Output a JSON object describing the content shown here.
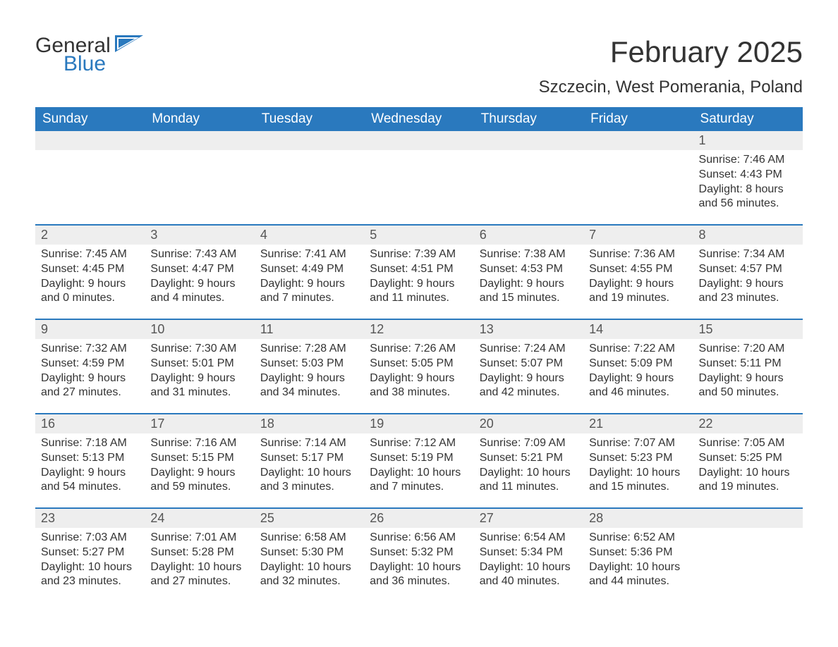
{
  "brand": {
    "general": "General",
    "blue": "Blue"
  },
  "title": "February 2025",
  "location": "Szczecin, West Pomerania, Poland",
  "colors": {
    "header_bg": "#2a79be",
    "header_text": "#ffffff",
    "daynum_bg": "#eeeeee",
    "text": "#333333",
    "week_border": "#2a79be",
    "background": "#ffffff"
  },
  "typography": {
    "title_fontsize": 42,
    "location_fontsize": 24,
    "header_fontsize": 19,
    "daynum_fontsize": 18,
    "detail_fontsize": 16
  },
  "day_headers": [
    "Sunday",
    "Monday",
    "Tuesday",
    "Wednesday",
    "Thursday",
    "Friday",
    "Saturday"
  ],
  "weeks": [
    [
      null,
      null,
      null,
      null,
      null,
      null,
      {
        "n": "1",
        "sunrise": "Sunrise: 7:46 AM",
        "sunset": "Sunset: 4:43 PM",
        "day1": "Daylight: 8 hours",
        "day2": "and 56 minutes."
      }
    ],
    [
      {
        "n": "2",
        "sunrise": "Sunrise: 7:45 AM",
        "sunset": "Sunset: 4:45 PM",
        "day1": "Daylight: 9 hours",
        "day2": "and 0 minutes."
      },
      {
        "n": "3",
        "sunrise": "Sunrise: 7:43 AM",
        "sunset": "Sunset: 4:47 PM",
        "day1": "Daylight: 9 hours",
        "day2": "and 4 minutes."
      },
      {
        "n": "4",
        "sunrise": "Sunrise: 7:41 AM",
        "sunset": "Sunset: 4:49 PM",
        "day1": "Daylight: 9 hours",
        "day2": "and 7 minutes."
      },
      {
        "n": "5",
        "sunrise": "Sunrise: 7:39 AM",
        "sunset": "Sunset: 4:51 PM",
        "day1": "Daylight: 9 hours",
        "day2": "and 11 minutes."
      },
      {
        "n": "6",
        "sunrise": "Sunrise: 7:38 AM",
        "sunset": "Sunset: 4:53 PM",
        "day1": "Daylight: 9 hours",
        "day2": "and 15 minutes."
      },
      {
        "n": "7",
        "sunrise": "Sunrise: 7:36 AM",
        "sunset": "Sunset: 4:55 PM",
        "day1": "Daylight: 9 hours",
        "day2": "and 19 minutes."
      },
      {
        "n": "8",
        "sunrise": "Sunrise: 7:34 AM",
        "sunset": "Sunset: 4:57 PM",
        "day1": "Daylight: 9 hours",
        "day2": "and 23 minutes."
      }
    ],
    [
      {
        "n": "9",
        "sunrise": "Sunrise: 7:32 AM",
        "sunset": "Sunset: 4:59 PM",
        "day1": "Daylight: 9 hours",
        "day2": "and 27 minutes."
      },
      {
        "n": "10",
        "sunrise": "Sunrise: 7:30 AM",
        "sunset": "Sunset: 5:01 PM",
        "day1": "Daylight: 9 hours",
        "day2": "and 31 minutes."
      },
      {
        "n": "11",
        "sunrise": "Sunrise: 7:28 AM",
        "sunset": "Sunset: 5:03 PM",
        "day1": "Daylight: 9 hours",
        "day2": "and 34 minutes."
      },
      {
        "n": "12",
        "sunrise": "Sunrise: 7:26 AM",
        "sunset": "Sunset: 5:05 PM",
        "day1": "Daylight: 9 hours",
        "day2": "and 38 minutes."
      },
      {
        "n": "13",
        "sunrise": "Sunrise: 7:24 AM",
        "sunset": "Sunset: 5:07 PM",
        "day1": "Daylight: 9 hours",
        "day2": "and 42 minutes."
      },
      {
        "n": "14",
        "sunrise": "Sunrise: 7:22 AM",
        "sunset": "Sunset: 5:09 PM",
        "day1": "Daylight: 9 hours",
        "day2": "and 46 minutes."
      },
      {
        "n": "15",
        "sunrise": "Sunrise: 7:20 AM",
        "sunset": "Sunset: 5:11 PM",
        "day1": "Daylight: 9 hours",
        "day2": "and 50 minutes."
      }
    ],
    [
      {
        "n": "16",
        "sunrise": "Sunrise: 7:18 AM",
        "sunset": "Sunset: 5:13 PM",
        "day1": "Daylight: 9 hours",
        "day2": "and 54 minutes."
      },
      {
        "n": "17",
        "sunrise": "Sunrise: 7:16 AM",
        "sunset": "Sunset: 5:15 PM",
        "day1": "Daylight: 9 hours",
        "day2": "and 59 minutes."
      },
      {
        "n": "18",
        "sunrise": "Sunrise: 7:14 AM",
        "sunset": "Sunset: 5:17 PM",
        "day1": "Daylight: 10 hours",
        "day2": "and 3 minutes."
      },
      {
        "n": "19",
        "sunrise": "Sunrise: 7:12 AM",
        "sunset": "Sunset: 5:19 PM",
        "day1": "Daylight: 10 hours",
        "day2": "and 7 minutes."
      },
      {
        "n": "20",
        "sunrise": "Sunrise: 7:09 AM",
        "sunset": "Sunset: 5:21 PM",
        "day1": "Daylight: 10 hours",
        "day2": "and 11 minutes."
      },
      {
        "n": "21",
        "sunrise": "Sunrise: 7:07 AM",
        "sunset": "Sunset: 5:23 PM",
        "day1": "Daylight: 10 hours",
        "day2": "and 15 minutes."
      },
      {
        "n": "22",
        "sunrise": "Sunrise: 7:05 AM",
        "sunset": "Sunset: 5:25 PM",
        "day1": "Daylight: 10 hours",
        "day2": "and 19 minutes."
      }
    ],
    [
      {
        "n": "23",
        "sunrise": "Sunrise: 7:03 AM",
        "sunset": "Sunset: 5:27 PM",
        "day1": "Daylight: 10 hours",
        "day2": "and 23 minutes."
      },
      {
        "n": "24",
        "sunrise": "Sunrise: 7:01 AM",
        "sunset": "Sunset: 5:28 PM",
        "day1": "Daylight: 10 hours",
        "day2": "and 27 minutes."
      },
      {
        "n": "25",
        "sunrise": "Sunrise: 6:58 AM",
        "sunset": "Sunset: 5:30 PM",
        "day1": "Daylight: 10 hours",
        "day2": "and 32 minutes."
      },
      {
        "n": "26",
        "sunrise": "Sunrise: 6:56 AM",
        "sunset": "Sunset: 5:32 PM",
        "day1": "Daylight: 10 hours",
        "day2": "and 36 minutes."
      },
      {
        "n": "27",
        "sunrise": "Sunrise: 6:54 AM",
        "sunset": "Sunset: 5:34 PM",
        "day1": "Daylight: 10 hours",
        "day2": "and 40 minutes."
      },
      {
        "n": "28",
        "sunrise": "Sunrise: 6:52 AM",
        "sunset": "Sunset: 5:36 PM",
        "day1": "Daylight: 10 hours",
        "day2": "and 44 minutes."
      },
      null
    ]
  ]
}
